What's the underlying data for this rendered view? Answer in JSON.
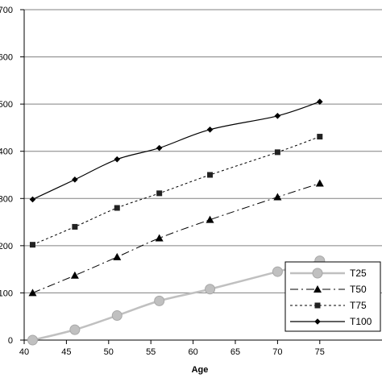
{
  "chart_data": {
    "type": "line",
    "title": "",
    "xlabel": "Age",
    "ylabel": "",
    "xlim": [
      40,
      78
    ],
    "ylim": [
      0,
      700
    ],
    "x_ticks": [
      40,
      45,
      50,
      55,
      60,
      65,
      70,
      75
    ],
    "y_ticks": [
      {
        "value": 0,
        "label": "0"
      },
      {
        "value": 100,
        "label": "100"
      },
      {
        "value": 200,
        "label": "200"
      },
      {
        "value": 300,
        "label": "300"
      },
      {
        "value": 400,
        "label": "400"
      },
      {
        "value": 500,
        "label": "500"
      },
      {
        "value": 600,
        "label": "600"
      },
      {
        "value": 700,
        "label": "700"
      }
    ],
    "grid": "horizontal",
    "legend_position": "bottom-right",
    "x": [
      41,
      46,
      51,
      56,
      62,
      70,
      75
    ],
    "series": [
      {
        "name": "T25",
        "marker": "circle",
        "line_style": "solid-thick",
        "color": "#c0c0c0",
        "marker_color": "#c0c0c0",
        "values": [
          0,
          22,
          52,
          83,
          108,
          145,
          168
        ]
      },
      {
        "name": "T50",
        "marker": "triangle",
        "line_style": "dash-dot",
        "color": "#000000",
        "marker_color": "#000000",
        "values": [
          100,
          137,
          176,
          216,
          255,
          303,
          332
        ]
      },
      {
        "name": "T75",
        "marker": "square",
        "line_style": "dotted",
        "color": "#000000",
        "marker_color": "#222222",
        "values": [
          202,
          240,
          280,
          311,
          350,
          398,
          431
        ]
      },
      {
        "name": "T100",
        "marker": "diamond",
        "line_style": "solid",
        "color": "#000000",
        "marker_color": "#000000",
        "values": [
          298,
          340,
          383,
          407,
          446,
          475,
          505
        ]
      }
    ]
  }
}
